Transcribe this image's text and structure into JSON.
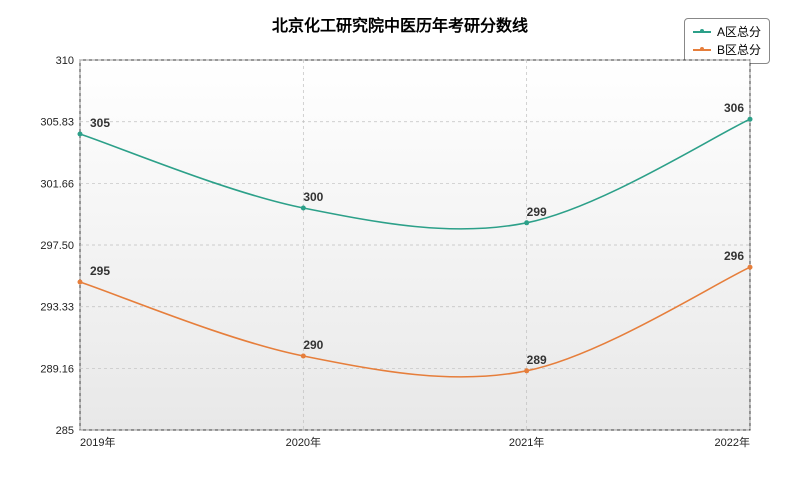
{
  "title": "北京化工研究院中医历年考研分数线",
  "legend": {
    "series_a": "A区总分",
    "series_b": "B区总分"
  },
  "colors": {
    "series_a": "#2ca089",
    "series_b": "#e67e3b",
    "grid": "#bfbfbf",
    "axis": "#333333",
    "background_top": "#ffffff",
    "background_bottom": "#e8e8e8",
    "border": "#888888"
  },
  "x_categories": [
    "2019年",
    "2020年",
    "2021年",
    "2022年"
  ],
  "y_axis": {
    "min": 285,
    "max": 310,
    "ticks": [
      285,
      289.16,
      293.33,
      297.5,
      301.66,
      305.83,
      310
    ]
  },
  "series": {
    "a": [
      305,
      300,
      299,
      306
    ],
    "b": [
      295,
      290,
      289,
      296
    ]
  },
  "line_width": 1.6,
  "marker_radius": 2.5,
  "title_fontsize": 16,
  "label_fontsize": 12
}
